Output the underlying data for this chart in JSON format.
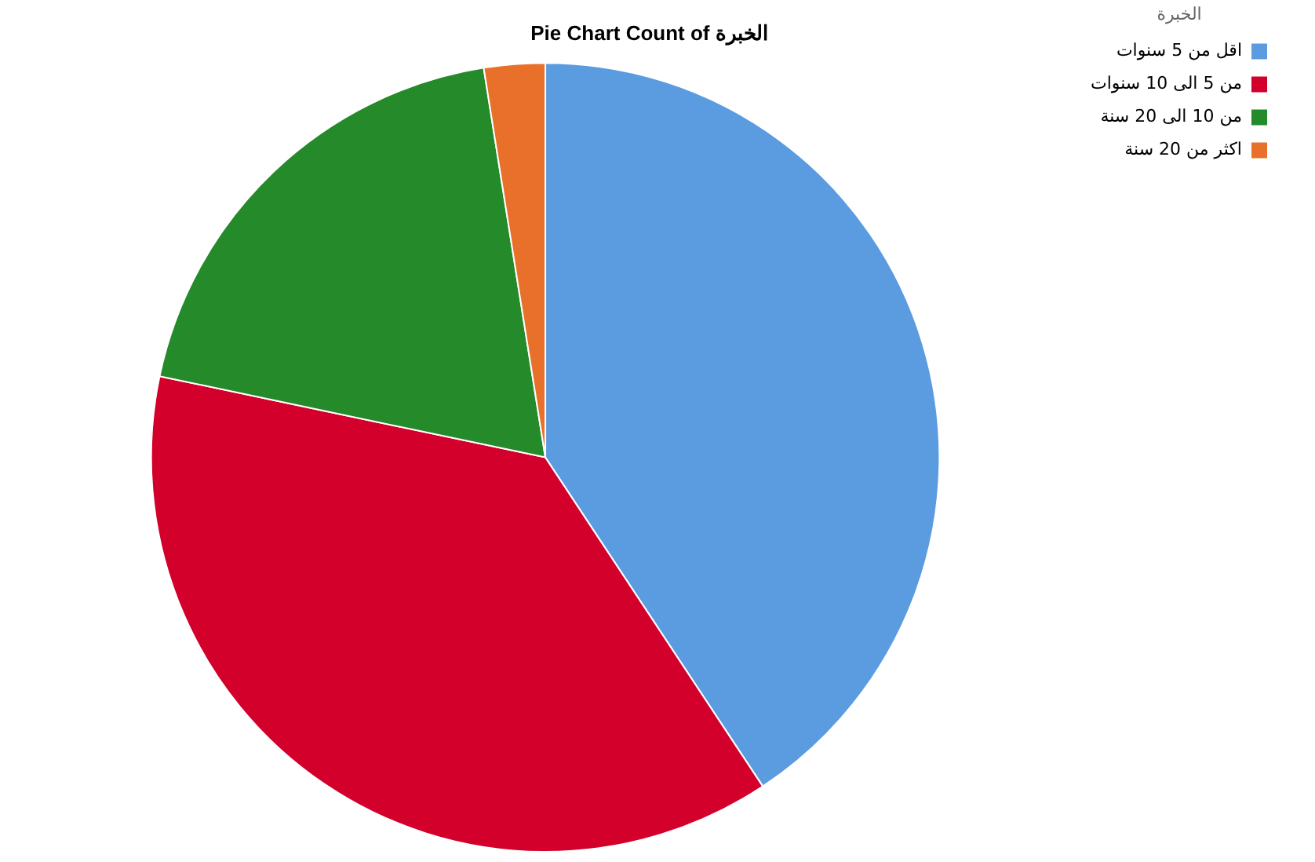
{
  "chart_data": {
    "type": "pie",
    "title": "Pie Chart Count of الخبرة",
    "legend_title": "الخبرة",
    "categories": [
      "اقل من 5 سنوات",
      "من 5 الى 10 سنوات",
      "من 10 الى 20 سنة",
      "اكثر من 20 سنة"
    ],
    "values": [
      40.7,
      37.6,
      19.2,
      2.5
    ],
    "colors": [
      "#5b9be0",
      "#d2002a",
      "#248a2a",
      "#e8702a"
    ],
    "legend": "top right"
  }
}
